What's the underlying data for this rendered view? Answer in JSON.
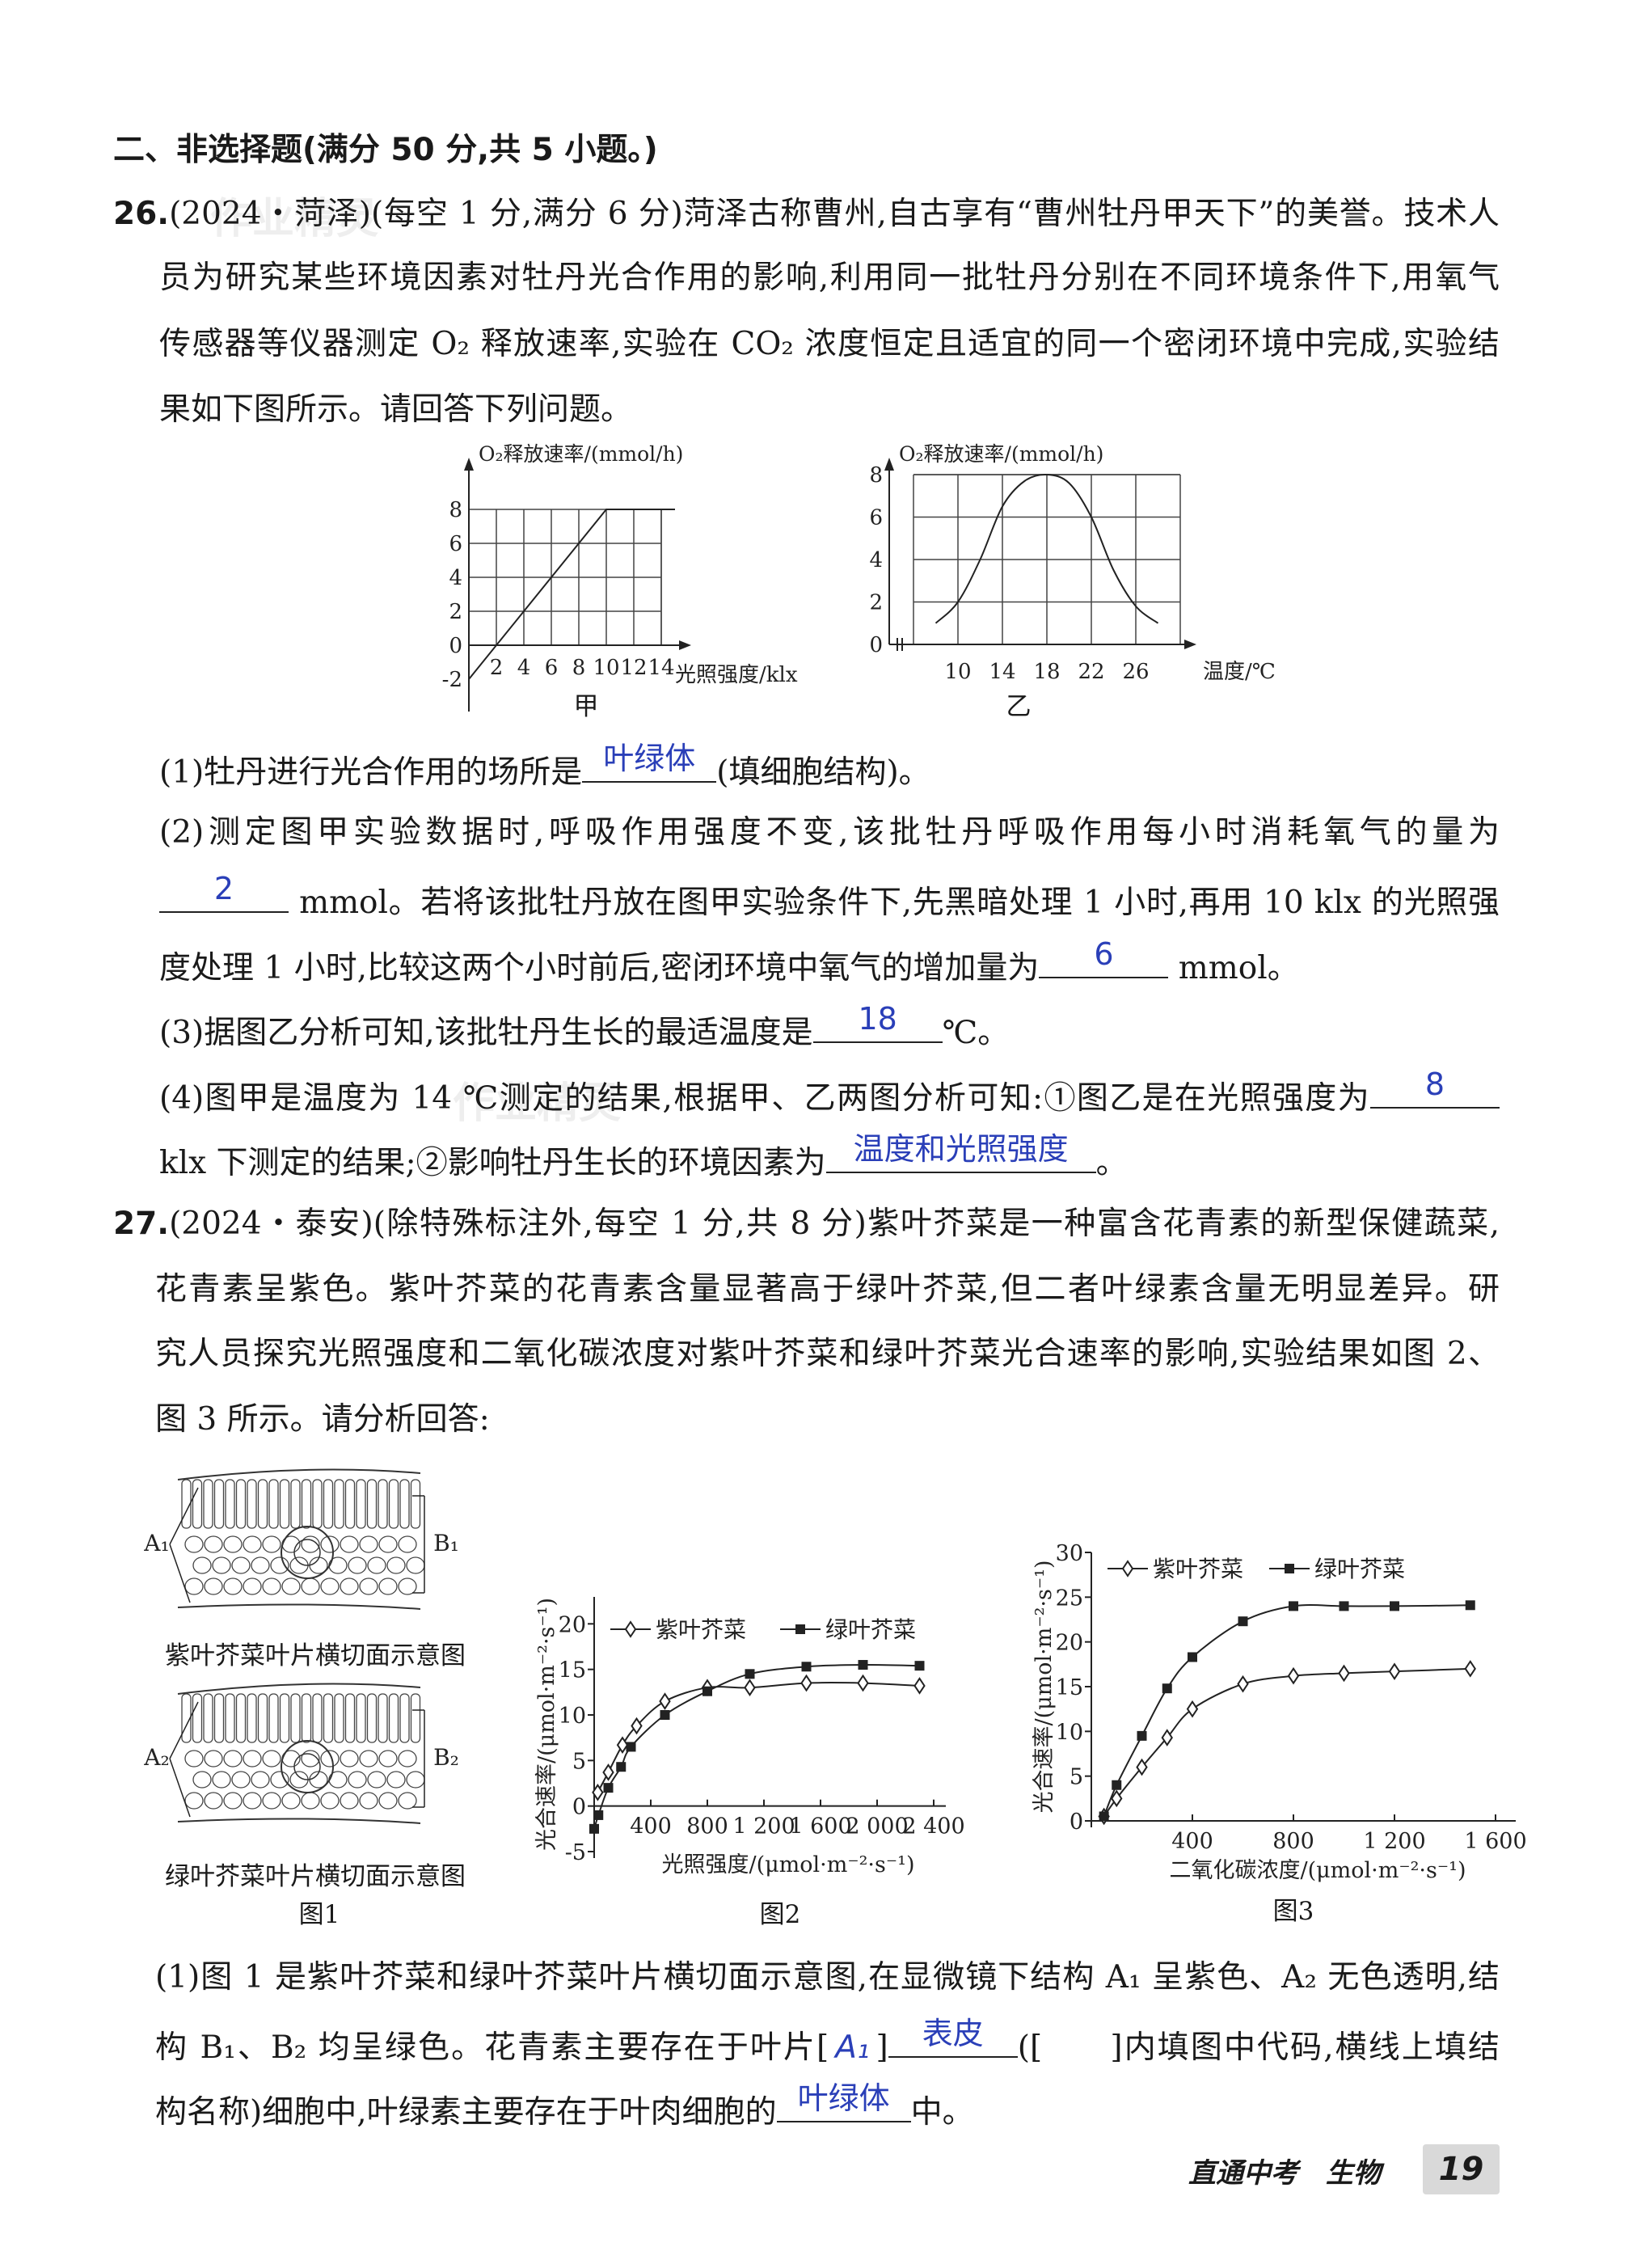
{
  "section_title": "二、非选择题(满分 50 分,共 5 小题。)",
  "watermark": "作业精灵",
  "q26": {
    "lines": [
      [
        {
          "b": "26."
        },
        {
          "t": "(2024・菏泽)(每空 1 分,满分 6 分)菏泽古称曹州,自古享有“曹州牡丹甲天下”的美誉。技术人"
        }
      ],
      [
        {
          "t": "员为研究某些环境因素对牡丹光合作用的影响,利用同一批牡丹分别在不同环境条件下,用氧气"
        }
      ],
      [
        {
          "t": "传感器等仪器测定 O₂ 释放速率,实验在 CO₂ 浓度恒定且适宜的同一个密闭环境中完成,实验结"
        }
      ],
      [
        {
          "t": "果如下图所示。请回答下列问题。"
        }
      ],
      [
        {
          "t": "(1)牡丹进行光合作用的场所是"
        },
        {
          "a": "叶绿体"
        },
        {
          "t": "(填细胞结构)。"
        }
      ],
      [
        {
          "t": "(2)测定图甲实验数据时,呼吸作用强度不变,该批牡丹呼吸作用每小时消耗氧气的量为"
        }
      ],
      [
        {
          "a": "2"
        },
        {
          "t": " mmol。若将该批牡丹放在图甲实验条件下,先黑暗处理 1 小时,再用 10 klx 的光照强"
        }
      ],
      [
        {
          "t": "度处理 1 小时,比较这两个小时前后,密闭环境中氧气的增加量为"
        },
        {
          "a": "6"
        },
        {
          "t": " mmol。"
        }
      ],
      [
        {
          "t": "(3)据图乙分析可知,该批牡丹生长的最适温度是"
        },
        {
          "a": "18"
        },
        {
          "t": "℃。"
        }
      ],
      [
        {
          "t": "(4)图甲是温度为 14 ℃测定的结果,根据甲、乙两图分析可知:①图乙是在光照强度为"
        },
        {
          "a": "8"
        }
      ],
      [
        {
          "t": "klx 下测定的结果;②影响牡丹生长的环境因素为"
        },
        {
          "a": "温度和光照强度"
        },
        {
          "t": "。"
        }
      ]
    ]
  },
  "q27": {
    "lines": [
      [
        {
          "b": "27."
        },
        {
          "t": "(2024・泰安)(除特殊标注外,每空 1 分,共 8 分)紫叶芥菜是一种富含花青素的新型保健蔬菜,"
        }
      ],
      [
        {
          "t": "花青素呈紫色。紫叶芥菜的花青素含量显著高于绿叶芥菜,但二者叶绿素含量无明显差异。研"
        }
      ],
      [
        {
          "t": "究人员探究光照强度和二氧化碳浓度对紫叶芥菜和绿叶芥菜光合速率的影响,实验结果如图 2、"
        }
      ],
      [
        {
          "t": "图 3 所示。请分析回答:"
        }
      ],
      [
        {
          "t": "(1)图 1 是紫叶芥菜和绿叶芥菜叶片横切面示意图,在显微镜下结构 A₁ 呈紫色、A₂ 无色透明,结"
        }
      ],
      [
        {
          "t": "构 B₁、B₂ 均呈绿色。花青素主要存在于叶片["
        },
        {
          "k": "A₁"
        },
        {
          "t": "]"
        },
        {
          "a": "表皮"
        },
        {
          "t": "([　　]内填图中代码,横线上填结"
        }
      ],
      [
        {
          "t": "构名称)细胞中,叶绿素主要存在于叶肉细胞的"
        },
        {
          "a": "叶绿体"
        },
        {
          "t": "中。"
        }
      ]
    ]
  },
  "fig1": {
    "top_caption": "紫叶芥菜叶片横切面示意图",
    "bottom_caption": "绿叶芥菜叶片横切面示意图",
    "title": "图1",
    "labels_top": [
      "A₁",
      "B₁"
    ],
    "labels_bottom": [
      "A₂",
      "B₂"
    ]
  },
  "chart_data": [
    {
      "type": "line",
      "title": "甲",
      "ylabel": "O₂释放速率/(mmol/h)",
      "xlabel": "光照强度/klx",
      "xticks": [
        "2",
        "4",
        "6",
        "8",
        "10",
        "12",
        "14"
      ],
      "yticks": [
        "-2",
        "0",
        "2",
        "4",
        "6",
        "8"
      ],
      "xlim": [
        0,
        15
      ],
      "ylim": [
        -2,
        8
      ],
      "grid": true,
      "series": [
        {
          "x": [
            0,
            10,
            15
          ],
          "y": [
            -2,
            8,
            8
          ]
        }
      ]
    },
    {
      "type": "line",
      "title": "乙",
      "ylabel": "O₂释放速率/(mmol/h)",
      "xlabel": "温度/℃",
      "xticks": [
        "10",
        "14",
        "18",
        "22",
        "26"
      ],
      "yticks": [
        "0",
        "2",
        "4",
        "6",
        "8"
      ],
      "xlim": [
        6,
        30
      ],
      "ylim": [
        0,
        8
      ],
      "grid": true,
      "axis_break": true,
      "series": [
        {
          "x": [
            8,
            10,
            12,
            14,
            16,
            18,
            20,
            22,
            24,
            26,
            28
          ],
          "y": [
            1,
            2,
            4,
            6.5,
            7.7,
            8,
            7.6,
            6,
            3.5,
            1.8,
            1
          ]
        }
      ]
    },
    {
      "type": "line",
      "title": "图2",
      "ylabel": "光合速率/(μmol·m⁻²·s⁻¹)",
      "xlabel": "光照强度/(μmol·m⁻²·s⁻¹)",
      "xticks": [
        "400",
        "800",
        "1 200",
        "1 600",
        "2 000",
        "2 400"
      ],
      "yticks": [
        "-5",
        "0",
        "5",
        "10",
        "15",
        "20"
      ],
      "xlim": [
        0,
        2400
      ],
      "ylim": [
        -5,
        25
      ],
      "grid": false,
      "legend": "top",
      "series": [
        {
          "name": "紫叶芥菜",
          "marker": "open-diamond",
          "x": [
            25,
            100,
            200,
            300,
            500,
            800,
            1100,
            1500,
            1900,
            2300
          ],
          "y": [
            1.5,
            3.7,
            6.7,
            8.8,
            11.5,
            13,
            13,
            13.5,
            13.5,
            13.2
          ]
        },
        {
          "name": "绿叶芥菜",
          "marker": "filled-square",
          "x": [
            0,
            30,
            100,
            190,
            260,
            500,
            800,
            1100,
            1500,
            1900,
            2300
          ],
          "y": [
            -2.5,
            -1,
            2,
            4.3,
            6.5,
            10,
            12.6,
            14.5,
            15.3,
            15.5,
            15.4
          ]
        }
      ]
    },
    {
      "type": "line",
      "title": "图3",
      "ylabel": "光合速率/(μmol·m⁻²·s⁻¹)",
      "xlabel": "二氧化碳浓度/(μmol·m⁻²·s⁻¹)",
      "xticks": [
        "400",
        "800",
        "1 200",
        "1 600"
      ],
      "yticks": [
        "0",
        "5",
        "10",
        "15",
        "20",
        "25",
        "30"
      ],
      "xlim": [
        0,
        1600
      ],
      "ylim": [
        0,
        30
      ],
      "grid": false,
      "legend": "top",
      "series": [
        {
          "name": "紫叶芥菜",
          "marker": "open-diamond",
          "x": [
            50,
            100,
            200,
            300,
            400,
            600,
            800,
            1000,
            1200,
            1500
          ],
          "y": [
            0.5,
            2.5,
            6,
            9.3,
            12.5,
            15.3,
            16.2,
            16.5,
            16.7,
            17
          ]
        },
        {
          "name": "绿叶芥菜",
          "marker": "filled-square",
          "x": [
            50,
            100,
            200,
            300,
            400,
            600,
            800,
            1000,
            1200,
            1500
          ],
          "y": [
            0.5,
            4,
            9.5,
            14.8,
            18.3,
            22.3,
            24,
            24,
            24,
            24.1
          ]
        }
      ]
    }
  ],
  "footer": {
    "book": "直通中考　生物",
    "page": "19"
  },
  "colors": {
    "answer": "#2a3fb8",
    "text": "#1a1a1a",
    "page_badge": "#d9d9d9"
  }
}
